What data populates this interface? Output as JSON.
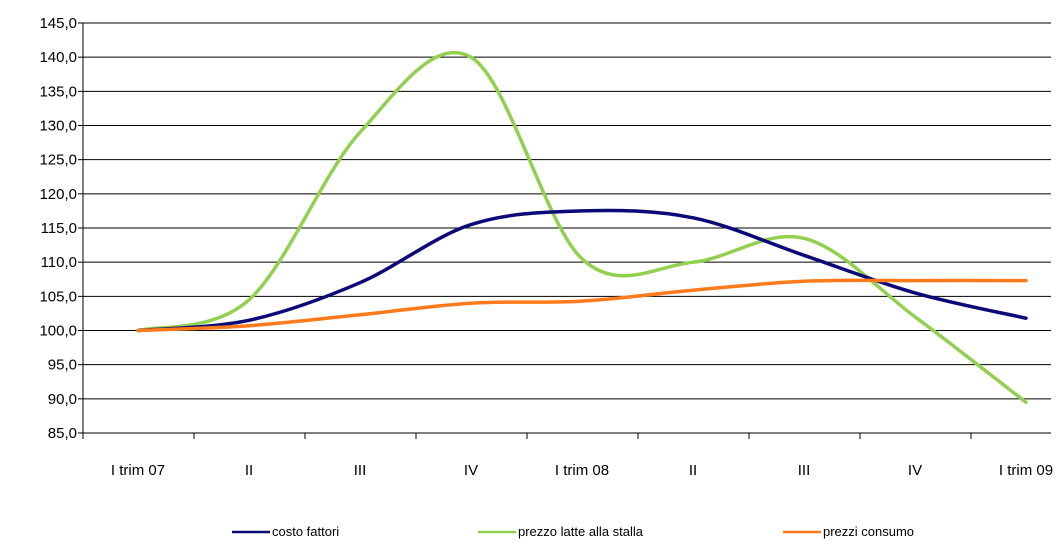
{
  "chart_data": {
    "type": "line",
    "title": "",
    "xlabel": "",
    "ylabel": "",
    "categories": [
      "I trim 07",
      "II",
      "III",
      "IV",
      "I trim 08",
      "II",
      "III",
      "IV",
      "I trim 09"
    ],
    "ylim": [
      85,
      145
    ],
    "yticks": [
      85,
      90,
      95,
      100,
      105,
      110,
      115,
      120,
      125,
      130,
      135,
      140,
      145
    ],
    "ytick_labels": [
      "85,0",
      "90,0",
      "95,0",
      "100,0",
      "105,0",
      "110,0",
      "115,0",
      "120,0",
      "125,0",
      "130,0",
      "135,0",
      "140,0",
      "145,0"
    ],
    "grid": "horizontal",
    "legend_position": "bottom",
    "series": [
      {
        "name": "costo fattori",
        "color": "#0a0a78",
        "values": [
          100.0,
          101.5,
          107.0,
          115.5,
          117.5,
          116.5,
          111.0,
          105.5,
          101.8
        ]
      },
      {
        "name": "prezzo latte alla stalla",
        "color": "#92d050",
        "values": [
          100.0,
          104.5,
          129.0,
          140.0,
          110.5,
          110.0,
          113.5,
          102.0,
          89.5
        ]
      },
      {
        "name": "prezzi consumo",
        "color": "#ff7a1a",
        "values": [
          100.0,
          100.7,
          102.3,
          104.0,
          104.3,
          105.9,
          107.2,
          107.3,
          107.3
        ]
      }
    ]
  }
}
